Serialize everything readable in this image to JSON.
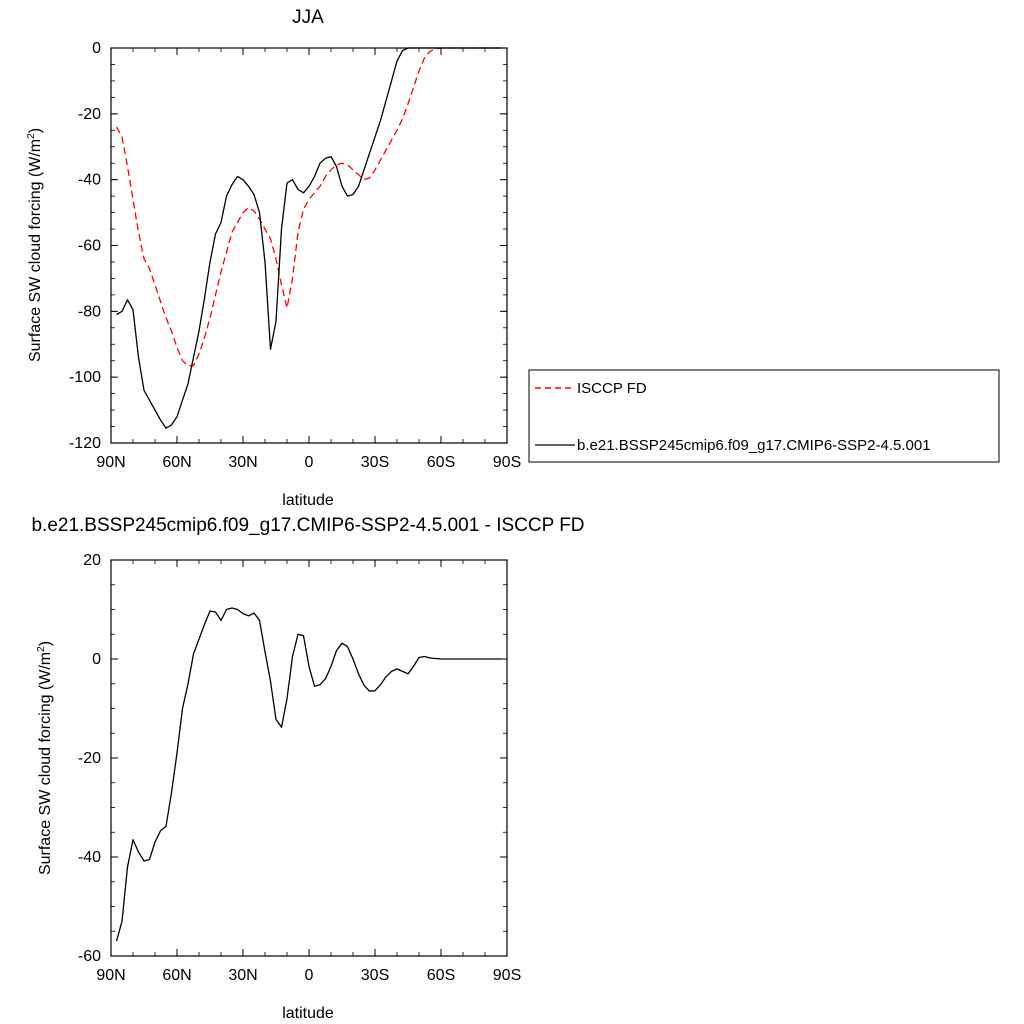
{
  "chart_data": [
    {
      "type": "line",
      "title": "JJA",
      "xlabel": "latitude",
      "ylabel": "Surface SW cloud forcing (W/m",
      "ylabel_sup": "2",
      "ylabel_tail": ")",
      "xlim": [
        90,
        -90
      ],
      "ylim": [
        -120,
        0
      ],
      "xticks": [
        {
          "value": 90,
          "label": "90N"
        },
        {
          "value": 60,
          "label": "60N"
        },
        {
          "value": 30,
          "label": "30N"
        },
        {
          "value": 0,
          "label": "0"
        },
        {
          "value": -30,
          "label": "30S"
        },
        {
          "value": -60,
          "label": "60S"
        },
        {
          "value": -90,
          "label": "90S"
        }
      ],
      "yticks": [
        0,
        -20,
        -40,
        -60,
        -80,
        -100,
        -120
      ],
      "legend_position": "right",
      "series": [
        {
          "name": "ISCCP FD",
          "color": "#ff0000",
          "dash": "dashed",
          "x": [
            87.5,
            85,
            82.5,
            80,
            77.5,
            75,
            72.5,
            70,
            67.5,
            65,
            62.5,
            60,
            57.5,
            55,
            52.5,
            50,
            47.5,
            45,
            42.5,
            40,
            37.5,
            35,
            32.5,
            30,
            27.5,
            25,
            22.5,
            20,
            17.5,
            15,
            12.5,
            10,
            7.5,
            5,
            2.5,
            0,
            -2.5,
            -5,
            -7.5,
            -10,
            -12.5,
            -15,
            -17.5,
            -20,
            -22.5,
            -25,
            -27.5,
            -30,
            -32.5,
            -35,
            -37.5,
            -40,
            -42.5,
            -45,
            -47.5,
            -50,
            -52.5,
            -55,
            -57.5,
            -60,
            -62.5,
            -65,
            -67.5,
            -70,
            -72.5,
            -75,
            -77.5,
            -80,
            -82.5,
            -85,
            -87.5
          ],
          "y": [
            -24,
            -27,
            -36,
            -46,
            -56,
            -64,
            -67,
            -72,
            -77,
            -82,
            -86,
            -91,
            -95,
            -96.5,
            -96.5,
            -93,
            -88,
            -82,
            -75,
            -68,
            -62,
            -56,
            -53,
            -50,
            -48.5,
            -49.5,
            -52,
            -55,
            -58,
            -64,
            -72,
            -79,
            -70,
            -56,
            -49,
            -46,
            -44,
            -42,
            -39,
            -37,
            -35.5,
            -35,
            -35.5,
            -37,
            -38.5,
            -40,
            -39.5,
            -37,
            -34,
            -31,
            -28,
            -25,
            -21.5,
            -17,
            -12,
            -7,
            -3,
            -1,
            -0.3,
            0,
            0,
            0,
            0,
            0,
            0,
            0,
            0,
            0,
            0,
            0,
            0
          ]
        },
        {
          "name": "b.e21.BSSP245cmip6.f09_g17.CMIP6-SSP2-4.5.001",
          "color": "#000000",
          "dash": "solid",
          "x": [
            87.5,
            85,
            82.5,
            80,
            77.5,
            75,
            72.5,
            70,
            67.5,
            65,
            62.5,
            60,
            57.5,
            55,
            52.5,
            50,
            47.5,
            45,
            42.5,
            40,
            37.5,
            35,
            32.5,
            30,
            27.5,
            25,
            22.5,
            20,
            17.5,
            15,
            12.5,
            10,
            7.5,
            5,
            2.5,
            0,
            -2.5,
            -5,
            -7.5,
            -10,
            -12.5,
            -15,
            -17.5,
            -20,
            -22.5,
            -25,
            -27.5,
            -30,
            -32.5,
            -35,
            -37.5,
            -40,
            -42.5,
            -45,
            -47.5,
            -50,
            -52.5,
            -55,
            -57.5,
            -60,
            -62.5,
            -65,
            -67.5,
            -70,
            -72.5,
            -75,
            -77.5,
            -80,
            -82.5,
            -85,
            -87.5
          ],
          "y": [
            -81,
            -80,
            -76.5,
            -79.5,
            -94,
            -104,
            -107,
            -110,
            -113,
            -115.5,
            -114.5,
            -112,
            -107,
            -102,
            -94,
            -86,
            -76,
            -65,
            -56.5,
            -53,
            -45,
            -41.5,
            -39,
            -40,
            -42,
            -44.5,
            -50,
            -65,
            -91.5,
            -83,
            -55,
            -41,
            -40,
            -43,
            -44,
            -42,
            -39,
            -35,
            -33.5,
            -33,
            -36,
            -42,
            -45,
            -44.5,
            -42,
            -37,
            -32,
            -27,
            -22,
            -16,
            -10,
            -4,
            -0.8,
            0,
            0,
            0,
            0,
            0,
            0,
            0,
            0,
            0,
            0,
            0,
            0,
            0,
            0,
            0,
            0,
            0,
            0
          ]
        }
      ]
    },
    {
      "type": "line",
      "title": "b.e21.BSSP245cmip6.f09_g17.CMIP6-SSP2-4.5.001 - ISCCP FD",
      "xlabel": "latitude",
      "ylabel": "Surface SW cloud forcing (W/m",
      "ylabel_sup": "2",
      "ylabel_tail": ")",
      "xlim": [
        90,
        -90
      ],
      "ylim": [
        -60,
        20
      ],
      "xticks": [
        {
          "value": 90,
          "label": "90N"
        },
        {
          "value": 60,
          "label": "60N"
        },
        {
          "value": 30,
          "label": "30N"
        },
        {
          "value": 0,
          "label": "0"
        },
        {
          "value": -30,
          "label": "30S"
        },
        {
          "value": -60,
          "label": "60S"
        },
        {
          "value": -90,
          "label": "90S"
        }
      ],
      "yticks": [
        20,
        0,
        -20,
        -40,
        -60
      ],
      "series": [
        {
          "color": "#000000",
          "dash": "solid",
          "x": [
            87.5,
            85,
            82.5,
            80,
            77.5,
            75,
            72.5,
            70,
            67.5,
            65,
            62.5,
            60,
            57.5,
            55,
            52.5,
            50,
            47.5,
            45,
            42.5,
            40,
            37.5,
            35,
            32.5,
            30,
            27.5,
            25,
            22.5,
            20,
            17.5,
            15,
            12.5,
            10,
            7.5,
            5,
            2.5,
            0,
            -2.5,
            -5,
            -7.5,
            -10,
            -12.5,
            -15,
            -17.5,
            -20,
            -22.5,
            -25,
            -27.5,
            -30,
            -32.5,
            -35,
            -37.5,
            -40,
            -42.5,
            -45,
            -47.5,
            -50,
            -52.5,
            -55,
            -57.5,
            -60,
            -62.5,
            -65,
            -67.5,
            -70,
            -72.5,
            -75,
            -77.5,
            -80,
            -82.5,
            -85,
            -87.5
          ],
          "y": [
            -57,
            -53,
            -42,
            -36.5,
            -39,
            -40.8,
            -40.5,
            -37,
            -34.7,
            -33.8,
            -27,
            -19,
            -10,
            -5,
            1,
            4,
            7,
            9.7,
            9.5,
            7.8,
            10,
            10.3,
            10,
            9.2,
            8.7,
            9.3,
            7.8,
            1.5,
            -4.5,
            -12.2,
            -13.8,
            -8,
            0.5,
            5,
            4.7,
            -1.5,
            -5.5,
            -5.2,
            -4,
            -1.5,
            1.7,
            3.2,
            2.5,
            0,
            -3,
            -5.3,
            -6.5,
            -6.4,
            -5.2,
            -3.6,
            -2.5,
            -2,
            -2.5,
            -3,
            -1.5,
            0.3,
            0.5,
            0.2,
            0.1,
            0,
            0,
            0,
            0,
            0,
            0,
            0,
            0,
            0,
            0,
            0,
            0
          ]
        }
      ]
    }
  ]
}
